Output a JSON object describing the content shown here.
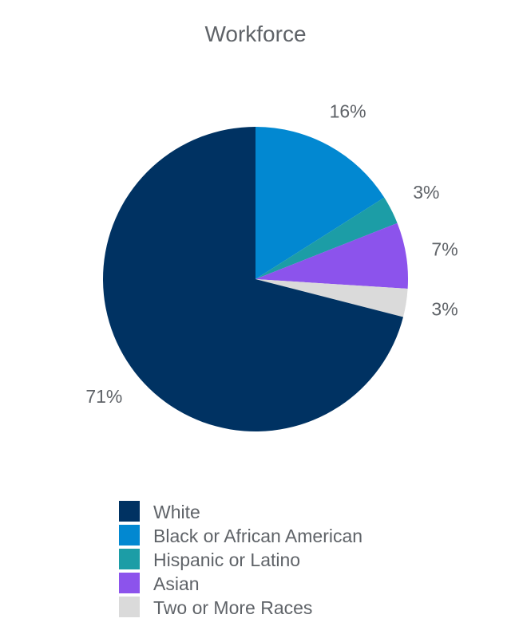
{
  "chart_data": {
    "type": "pie",
    "title": "Workforce",
    "start_angle_deg": 0,
    "direction": "clockwise",
    "slices": [
      {
        "label": "Black or African American",
        "value": 16,
        "display": "16%",
        "color": "#0288D1"
      },
      {
        "label": "Hispanic or Latino",
        "value": 3,
        "display": "3%",
        "color": "#1C9DA6"
      },
      {
        "label": "Asian",
        "value": 7,
        "display": "7%",
        "color": "#8C53EC"
      },
      {
        "label": "Two or More Races",
        "value": 3,
        "display": "3%",
        "color": "#DADADA"
      },
      {
        "label": "White",
        "value": 71,
        "display": "71%",
        "color": "#003262"
      }
    ],
    "legend": {
      "position": "bottom",
      "order": [
        "White",
        "Black or African American",
        "Hispanic or Latino",
        "Asian",
        "Two or More Races"
      ]
    },
    "colors": {
      "title_text": "#5F6368",
      "label_text": "#5F6368",
      "legend_text": "#5F6368"
    }
  }
}
